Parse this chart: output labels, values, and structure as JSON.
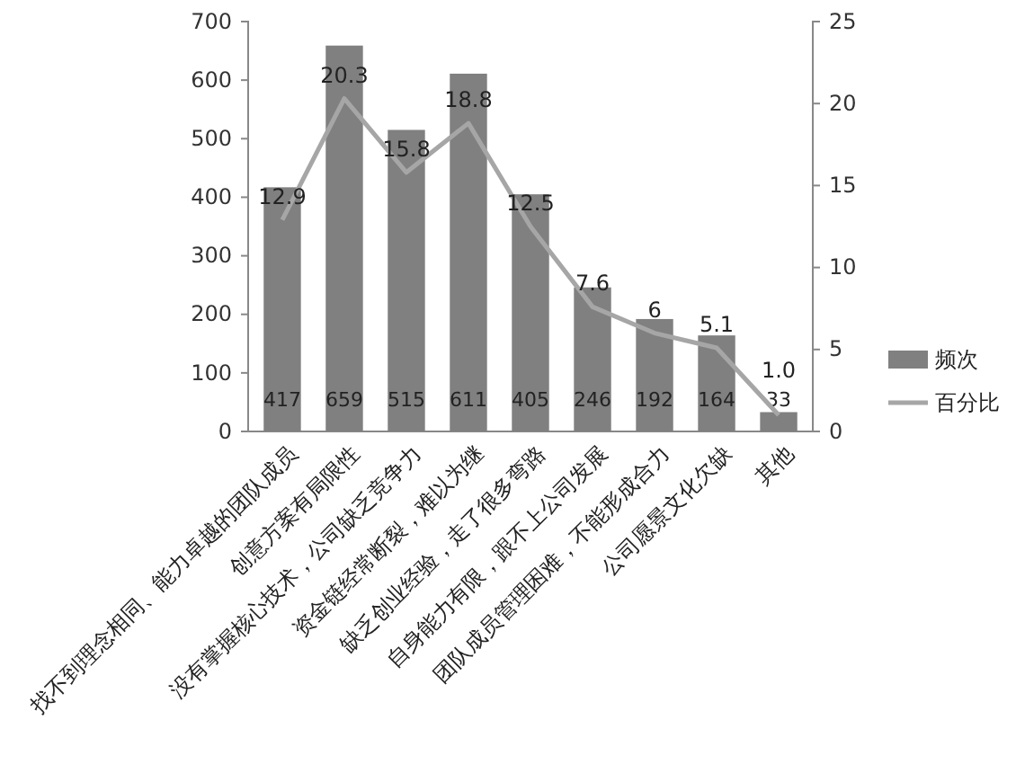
{
  "chart_data": {
    "type": "bar",
    "categories": [
      "找不到理念相同、能力卓越的团队成员",
      "创意方案有局限性",
      "没有掌握核心技术，公司缺乏竞争力",
      "资金链经常断裂，难以为继",
      "缺乏创业经验，走了很多弯路",
      "自身能力有限，跟不上公司发展",
      "团队成员管理困难，不能形成合力",
      "公司愿景文化欠缺",
      "其他"
    ],
    "series": [
      {
        "name": "频次",
        "color": "#808080",
        "values": [
          417,
          659,
          515,
          611,
          405,
          246,
          192,
          164,
          33
        ],
        "value_labels": [
          "417",
          "659",
          "515",
          "611",
          "405",
          "246",
          "192",
          "164",
          "33"
        ]
      },
      {
        "name": "百分比",
        "type": "line",
        "axis": "y2",
        "color": "#a6a6a6",
        "values": [
          12.9,
          20.3,
          15.8,
          18.8,
          12.5,
          7.6,
          6,
          5.1,
          1.0
        ],
        "value_labels": [
          "12.9",
          "20.3",
          "15.8",
          "18.8",
          "12.5",
          "7.6",
          "6",
          "5.1",
          "1.0"
        ]
      }
    ],
    "ylim": [
      0,
      700
    ],
    "yticks": [
      0,
      100,
      200,
      300,
      400,
      500,
      600,
      700
    ],
    "y2lim": [
      0,
      25
    ],
    "y2ticks": [
      0,
      5,
      10,
      15,
      20,
      25
    ],
    "legend": "right",
    "grid": false,
    "marker": "none"
  }
}
